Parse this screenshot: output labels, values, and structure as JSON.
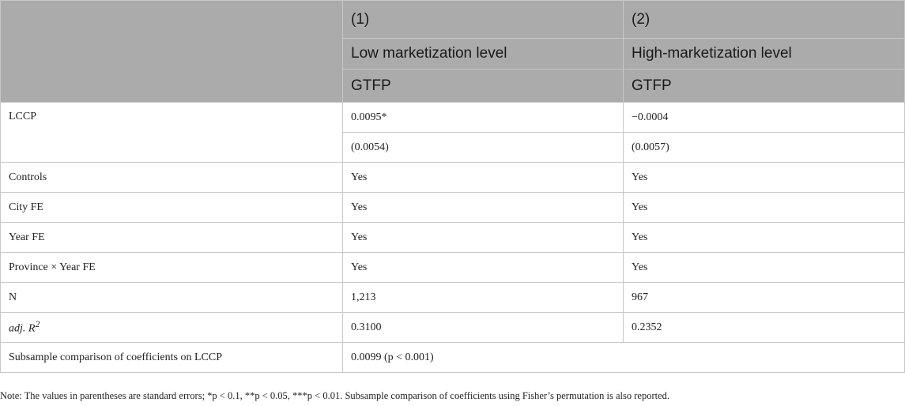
{
  "table": {
    "header": {
      "col1_number": "(1)",
      "col2_number": "(2)",
      "col1_group": "Low marketization level",
      "col2_group": "High-marketization level",
      "col1_depvar": "GTFP",
      "col2_depvar": "GTFP"
    },
    "rows": {
      "lccp": {
        "label": "LCCP",
        "col1": "0.0095*",
        "col2": "−0.0004"
      },
      "lccp_se": {
        "col1": "(0.0054)",
        "col2": "(0.0057)"
      },
      "controls": {
        "label": "Controls",
        "col1": "Yes",
        "col2": "Yes"
      },
      "city_fe": {
        "label": "City FE",
        "col1": "Yes",
        "col2": "Yes"
      },
      "year_fe": {
        "label": "Year FE",
        "col1": "Yes",
        "col2": "Yes"
      },
      "province_year_fe": {
        "label": "Province × Year FE",
        "col1": "Yes",
        "col2": "Yes"
      },
      "n": {
        "label": "N",
        "col1": "1,213",
        "col2": "967"
      },
      "adj_r2": {
        "label_prefix": "adj. R",
        "label_sup": "2",
        "col1": "0.3100",
        "col2": "0.2352"
      },
      "subsample": {
        "label": "Subsample comparison of coefficients on LCCP",
        "value": "0.0099 (p < 0.001)"
      }
    }
  },
  "note": "Note: The values in parentheses are standard errors; *p < 0.1, **p < 0.05, ***p < 0.01. Subsample comparison of coefficients using Fisher’s permutation is also reported."
}
